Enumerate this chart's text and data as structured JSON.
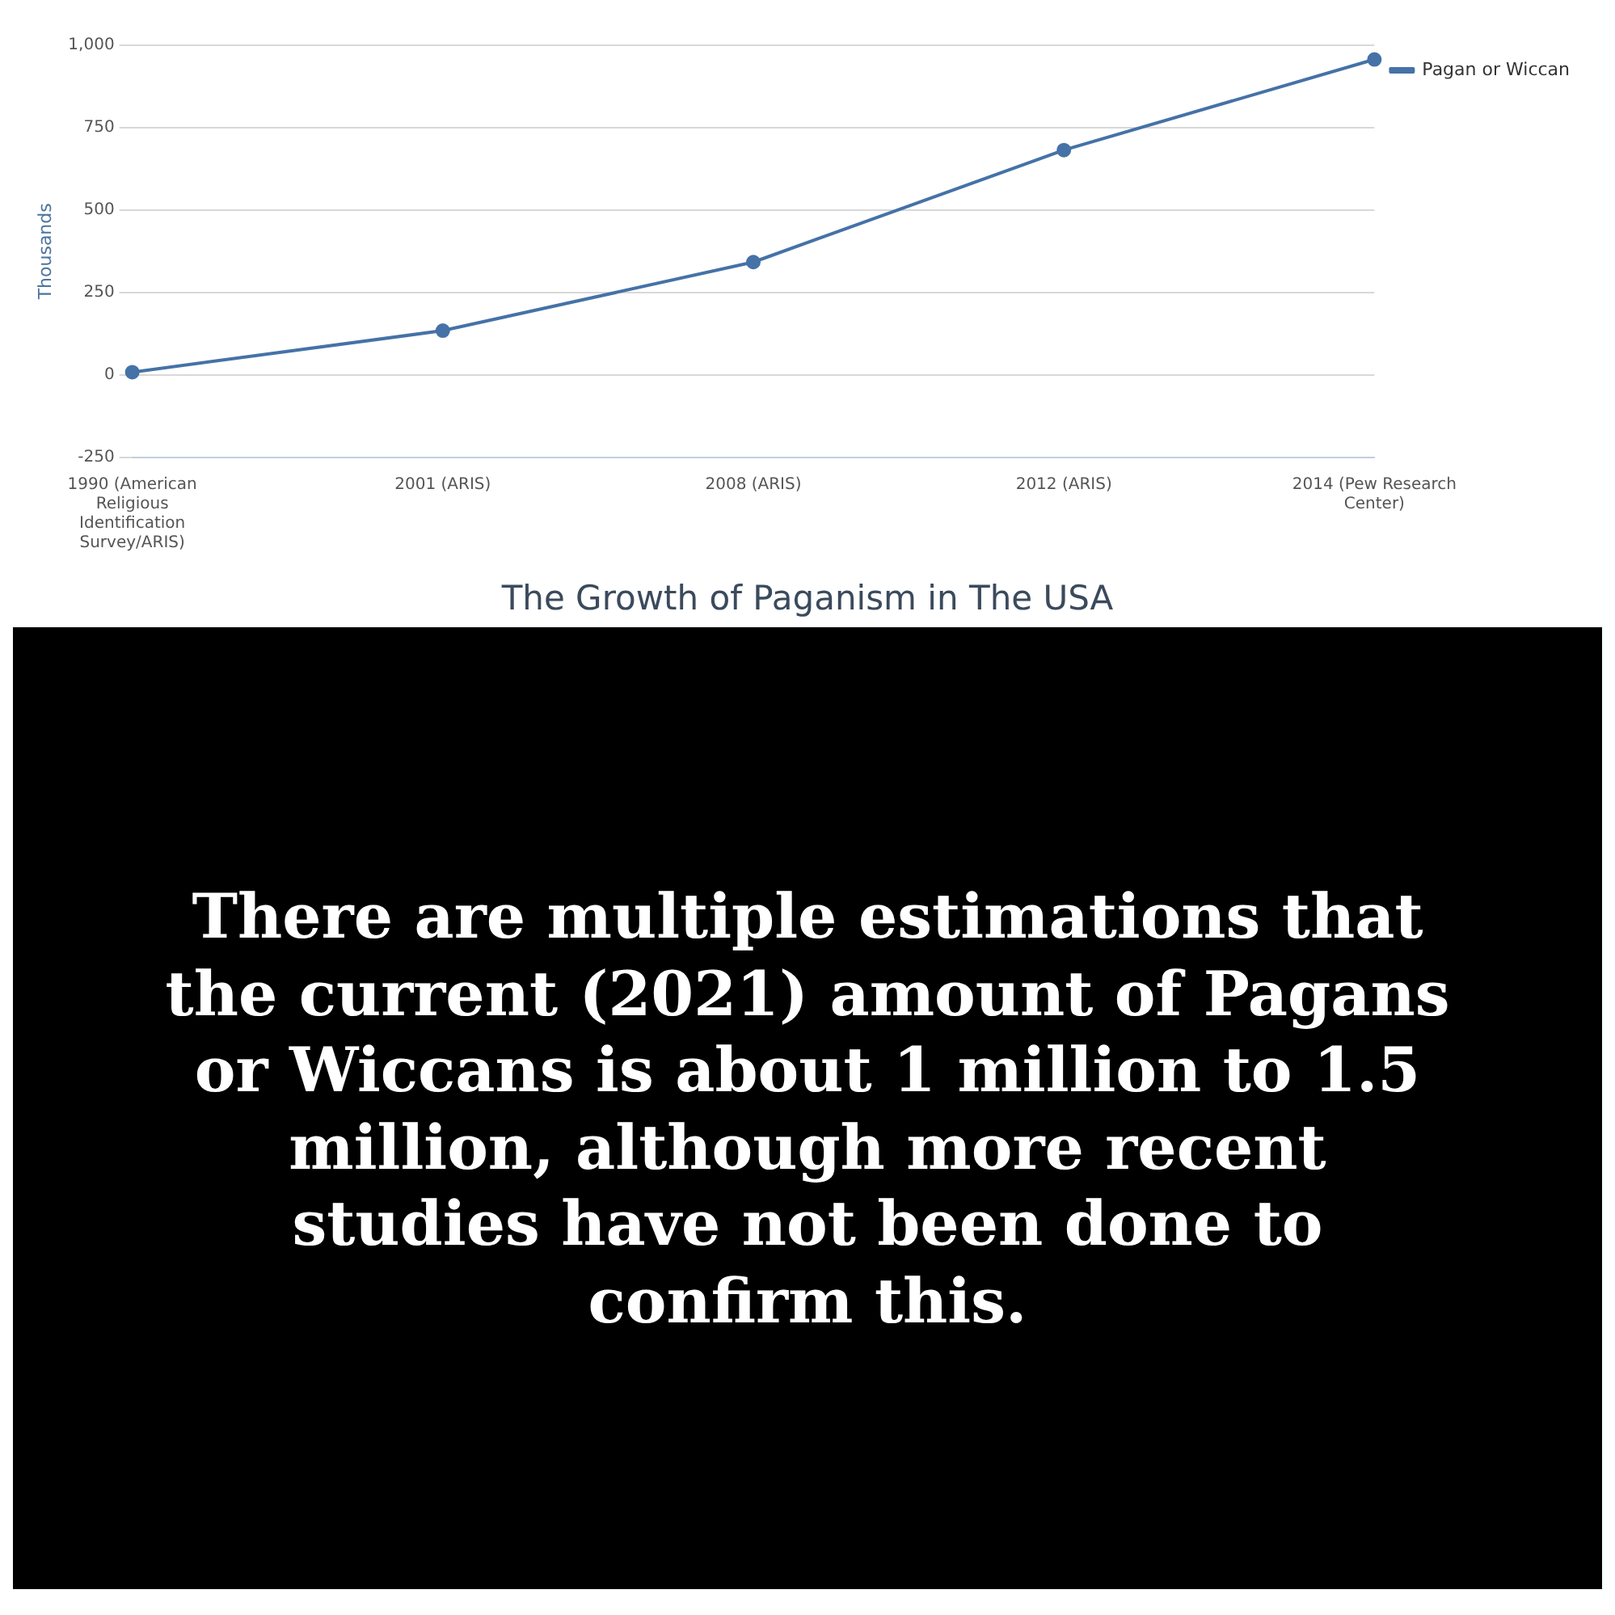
{
  "chart_data": {
    "type": "line",
    "title": "The Growth of Paganism in The USA",
    "ylabel": "Thousands",
    "categories": [
      "1990 (American Religious Identification Survey/ARIS)",
      "2001 (ARIS)",
      "2008 (ARIS)",
      "2012 (ARIS)",
      "2014 (Pew Research Center)"
    ],
    "series": [
      {
        "name": "Pagan or Wiccan",
        "color": "#4572a7",
        "values": [
          8,
          134,
          342,
          682,
          957
        ]
      }
    ],
    "ylim": [
      -250,
      1000
    ],
    "yticks": [
      -250,
      0,
      {
        "value": 250,
        "label": "250"
      },
      500,
      750,
      {
        "value": 1000,
        "label": "1,000"
      }
    ],
    "grid": "y",
    "legend": "right",
    "marker": "circle",
    "line_style": "solid",
    "annotations": [
      "There are multiple estimations that the current (2021) amount of Pagans or Wiccans is about 1 million to 1.5 million, although more recent studies have not been done to confirm this."
    ]
  }
}
